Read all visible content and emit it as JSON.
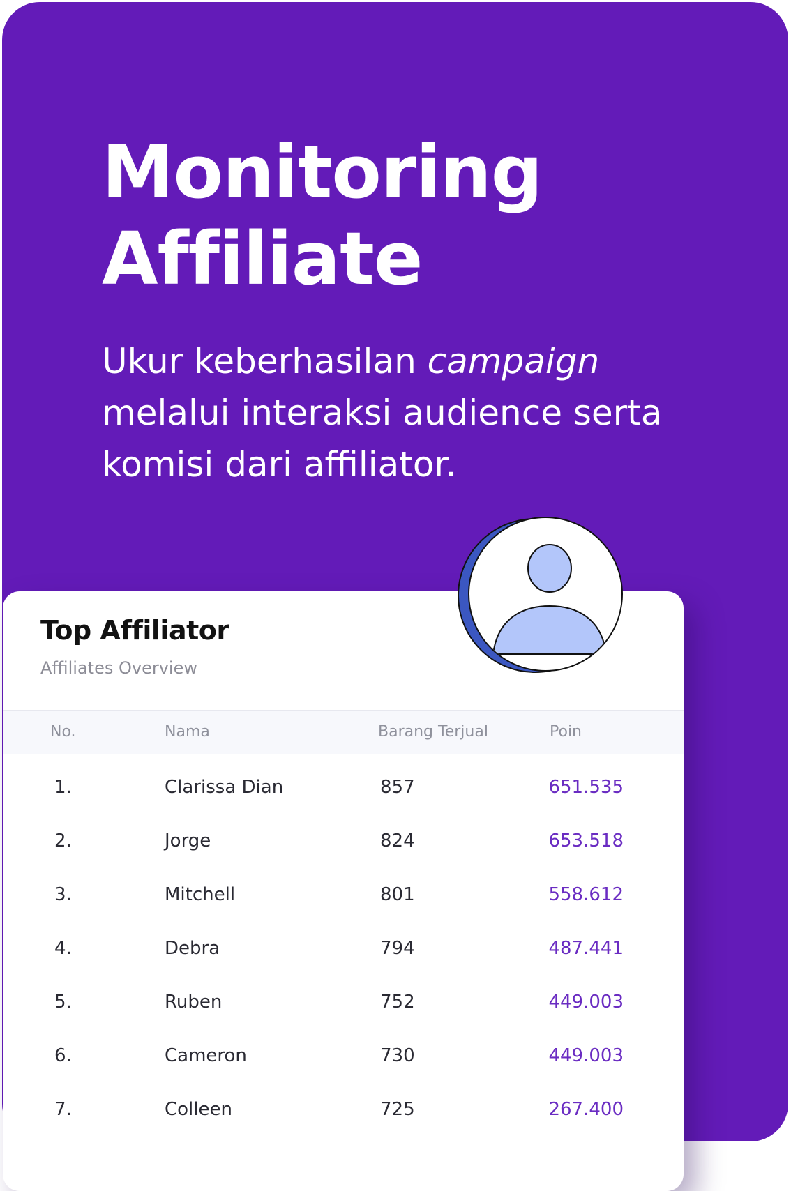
{
  "hero": {
    "title_line1": "Monitoring",
    "title_line2": "Affiliate",
    "desc_part1": "Ukur keberhasilan ",
    "desc_italic": "campaign",
    "desc_part2": " melalui interaksi audience serta komisi dari affiliator."
  },
  "colors": {
    "brand": "#631bb8",
    "accent_value": "#6a2cc2",
    "avatar_fill": "#b3c6fa",
    "avatar_shadow": "#3b57c1"
  },
  "icons": {
    "avatar": "user-avatar-icon"
  },
  "panel": {
    "title": "Top Affiliator",
    "subtitle": "Affiliates Overview",
    "columns": [
      "No.",
      "Nama",
      "Barang Terjual",
      "Poin"
    ],
    "rows": [
      {
        "no": "1.",
        "name": "Clarissa Dian",
        "sold": "857",
        "points": "651.535"
      },
      {
        "no": "2.",
        "name": "Jorge",
        "sold": "824",
        "points": "653.518"
      },
      {
        "no": "3.",
        "name": "Mitchell",
        "sold": "801",
        "points": "558.612"
      },
      {
        "no": "4.",
        "name": "Debra",
        "sold": "794",
        "points": "487.441"
      },
      {
        "no": "5.",
        "name": "Ruben",
        "sold": "752",
        "points": "449.003"
      },
      {
        "no": "6.",
        "name": "Cameron",
        "sold": "730",
        "points": "449.003"
      },
      {
        "no": "7.",
        "name": "Colleen",
        "sold": "725",
        "points": "267.400"
      }
    ]
  }
}
